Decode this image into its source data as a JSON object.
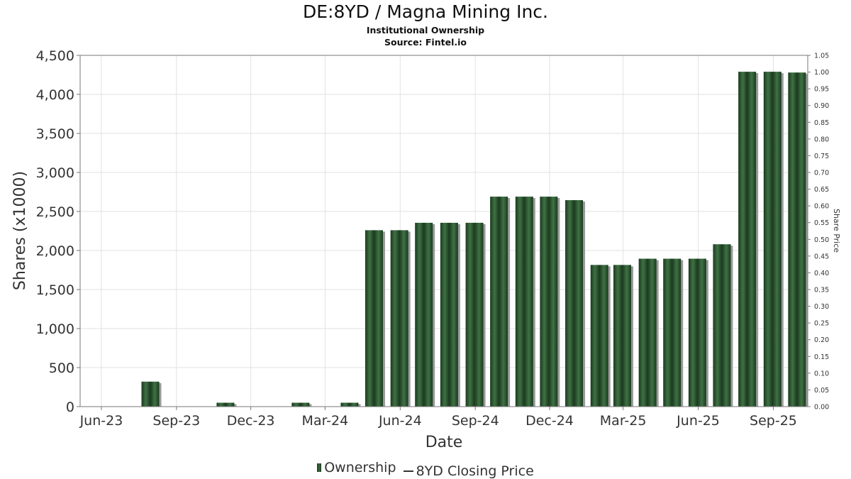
{
  "header": {
    "title": "DE:8YD / Magna Mining Inc.",
    "subtitle1": "Institutional Ownership",
    "subtitle2": "Source: Fintel.io"
  },
  "legend": {
    "ownership": "Ownership",
    "price": "8YD Closing Price"
  },
  "colors": {
    "bar_dark": "#1b3a1f",
    "bar_light": "#3f7244",
    "bar_shadow": "#9a9a9a",
    "grid": "#e2e2e2",
    "axis_text": "#333333"
  },
  "chart_data": {
    "type": "bar",
    "xlabel": "Date",
    "ylabel": "Shares (x1000)",
    "y2label": "Share Price",
    "ylim": [
      0,
      4500
    ],
    "y2lim": [
      0,
      1.05
    ],
    "y_ticks": [
      "0",
      "500",
      "1,000",
      "1,500",
      "2,000",
      "2,500",
      "3,000",
      "3,500",
      "4,000",
      "4,500"
    ],
    "y2_ticks": [
      "0.00",
      "0.05",
      "0.10",
      "0.15",
      "0.20",
      "0.25",
      "0.30",
      "0.35",
      "0.40",
      "0.45",
      "0.50",
      "0.55",
      "0.60",
      "0.65",
      "0.70",
      "0.75",
      "0.80",
      "0.85",
      "0.90",
      "0.95",
      "1.00",
      "1.05"
    ],
    "x_ticks": [
      "Jun-23",
      "Sep-23",
      "Dec-23",
      "Mar-24",
      "Jun-24",
      "Sep-24",
      "Dec-24",
      "Mar-25",
      "Jun-25",
      "Sep-25"
    ],
    "grid": true,
    "legend_position": "bottom",
    "series": [
      {
        "name": "Ownership",
        "points": [
          {
            "x": "2023-07-31",
            "y": 320
          },
          {
            "x": "2023-10-31",
            "y": 50
          },
          {
            "x": "2024-01-31",
            "y": 50
          },
          {
            "x": "2024-03-31",
            "y": 50
          },
          {
            "x": "2024-04-30",
            "y": 2260
          },
          {
            "x": "2024-05-31",
            "y": 2260
          },
          {
            "x": "2024-06-30",
            "y": 2355
          },
          {
            "x": "2024-07-31",
            "y": 2355
          },
          {
            "x": "2024-08-31",
            "y": 2355
          },
          {
            "x": "2024-09-30",
            "y": 2690
          },
          {
            "x": "2024-10-31",
            "y": 2690
          },
          {
            "x": "2024-11-30",
            "y": 2690
          },
          {
            "x": "2024-12-31",
            "y": 2645
          },
          {
            "x": "2025-01-31",
            "y": 1815
          },
          {
            "x": "2025-02-28",
            "y": 1815
          },
          {
            "x": "2025-03-31",
            "y": 1895
          },
          {
            "x": "2025-04-30",
            "y": 1895
          },
          {
            "x": "2025-05-31",
            "y": 1895
          },
          {
            "x": "2025-06-30",
            "y": 2080
          },
          {
            "x": "2025-07-31",
            "y": 4290
          },
          {
            "x": "2025-08-31",
            "y": 4290
          },
          {
            "x": "2025-09-30",
            "y": 4280
          }
        ]
      }
    ]
  }
}
